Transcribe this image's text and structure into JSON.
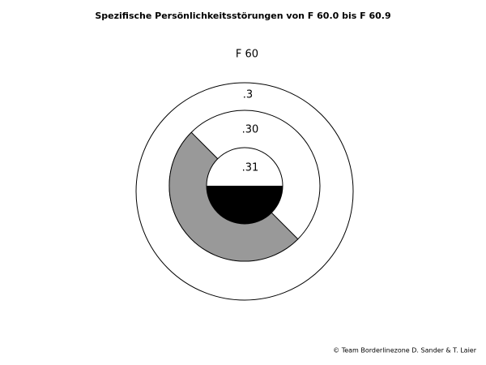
{
  "title": "Spezifische Persönlichkeitsstörungen von F 60.0 bis F 60.9",
  "labels": {
    "outer": "F 60",
    "ring": ".3",
    "middle": ".30",
    "inner": ".31"
  },
  "footer": "© Team Borderlinezone D. Sander & T. Laier"
}
